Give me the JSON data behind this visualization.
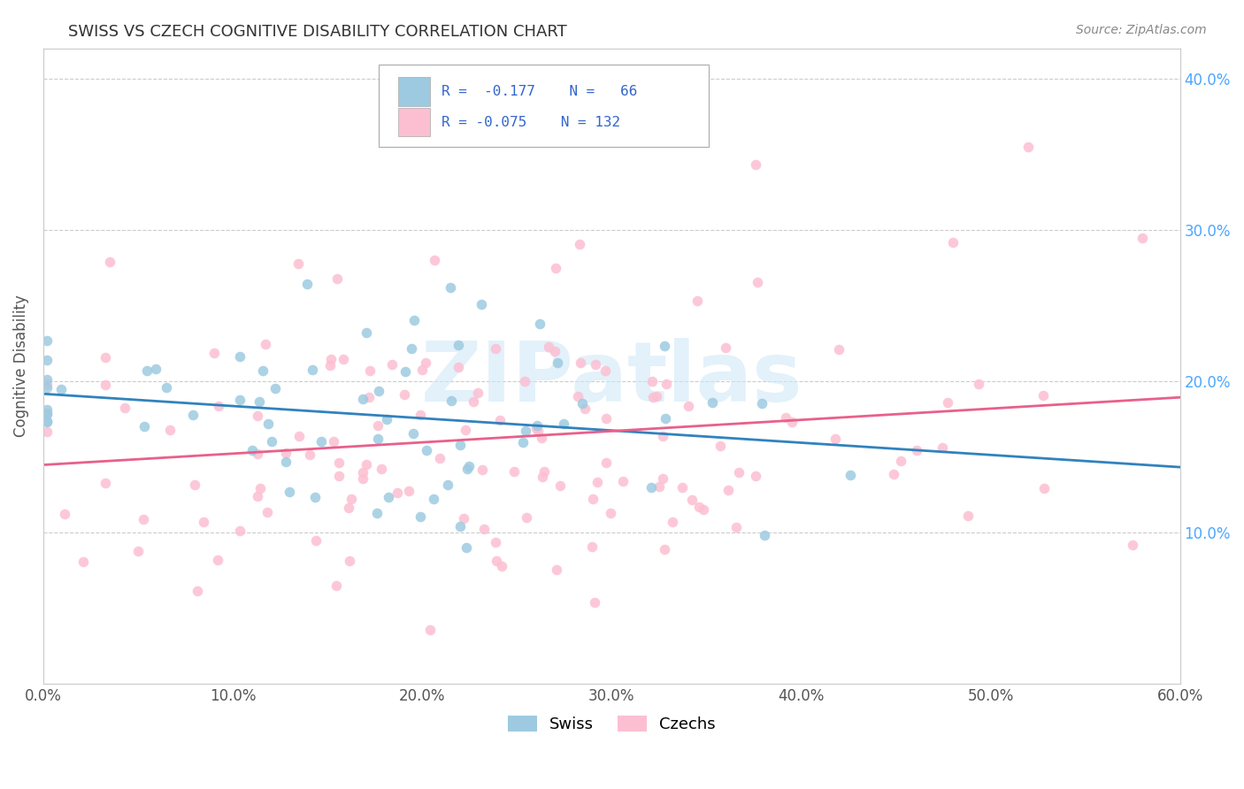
{
  "title": "SWISS VS CZECH COGNITIVE DISABILITY CORRELATION CHART",
  "source": "Source: ZipAtlas.com",
  "ylabel": "Cognitive Disability",
  "xlim": [
    0.0,
    0.6
  ],
  "ylim": [
    0.0,
    0.42
  ],
  "xtick_vals": [
    0.0,
    0.1,
    0.2,
    0.3,
    0.4,
    0.5,
    0.6
  ],
  "xtick_labels": [
    "0.0%",
    "10.0%",
    "20.0%",
    "30.0%",
    "40.0%",
    "50.0%",
    "60.0%"
  ],
  "ytick_vals": [
    0.1,
    0.2,
    0.3,
    0.4
  ],
  "ytick_labels": [
    "10.0%",
    "20.0%",
    "30.0%",
    "40.0%"
  ],
  "swiss_color": "#9ecae1",
  "czech_color": "#fcbfd2",
  "swiss_line_color": "#3182bd",
  "czech_line_color": "#e8608a",
  "swiss_R": -0.177,
  "swiss_N": 66,
  "czech_R": -0.075,
  "czech_N": 132,
  "background_color": "#ffffff",
  "grid_color": "#cccccc",
  "title_color": "#333333",
  "axis_label_color": "#555555",
  "right_tick_color": "#4da6ff",
  "watermark_text": "ZIPatlas",
  "watermark_color": "#d0e8f8",
  "legend_label_swiss": "Swiss",
  "legend_label_czech": "Czechs"
}
